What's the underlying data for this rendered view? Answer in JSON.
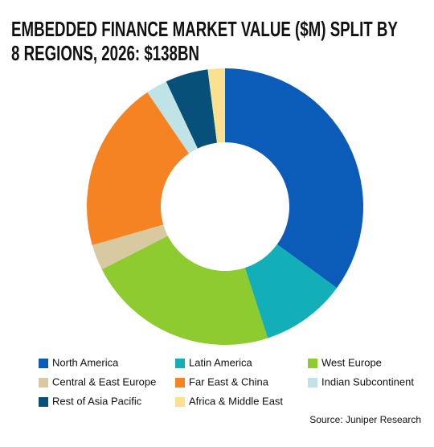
{
  "chart_data": {
    "type": "donut",
    "title": "EMBEDDED FINANCE MARKET VALUE ($M) SPLIT BY 8 REGIONS, 2026: $138BN",
    "categories": [
      "North America",
      "Latin America",
      "West Europe",
      "Central & East Europe",
      "Far East & China",
      "Indian Subcontinent",
      "Rest of Asia Pacific",
      "Africa & Middle East"
    ],
    "values": [
      35,
      10,
      22.5,
      3,
      20,
      2.5,
      5,
      2
    ],
    "colors": [
      "#0a5cb8",
      "#13afb9",
      "#8dcb2f",
      "#d9c9a0",
      "#f58321",
      "#bfe3e6",
      "#07507a",
      "#fbe08f"
    ],
    "source": "Source: Juniper Research"
  }
}
